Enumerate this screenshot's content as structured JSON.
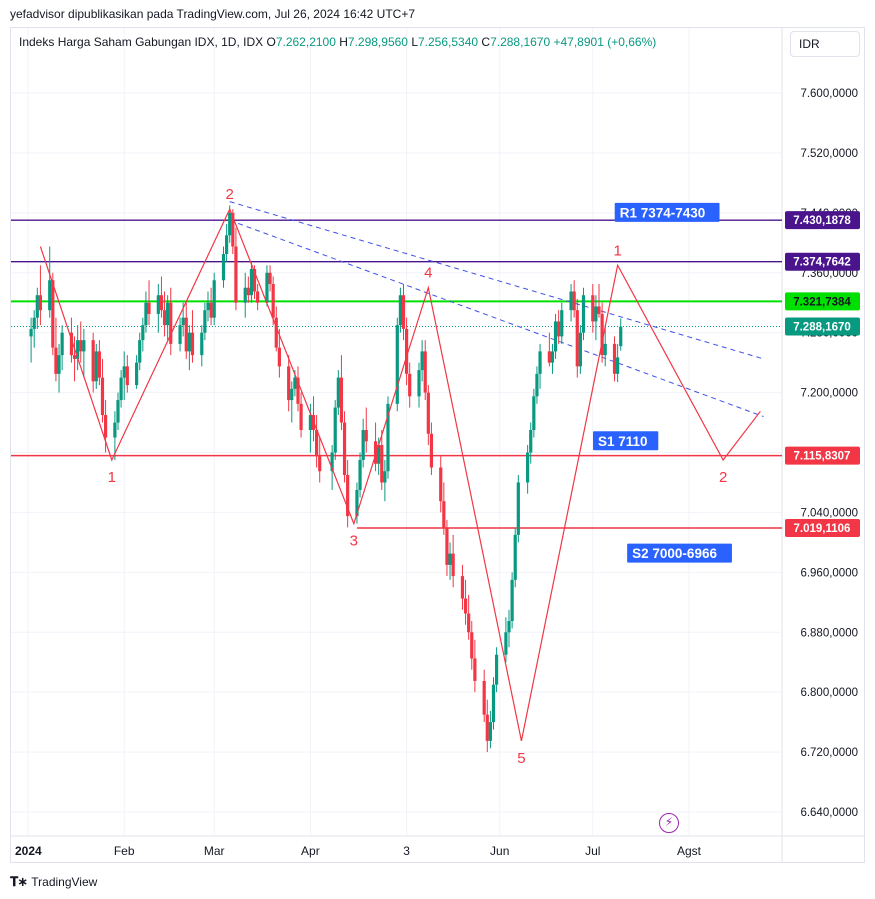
{
  "publisher": "yefadvisor dipublikasikan pada TradingView.com, Jul 26, 2024 16:42 UTC+7",
  "legend": {
    "title": "Indeks Harga Saham Gabungan IDX, 1D, IDX",
    "o_label": "O",
    "o": "7.262,2100",
    "h_label": "H",
    "h": "7.298,9560",
    "l_label": "L",
    "l": "7.256,5340",
    "c_label": "C",
    "c": "7.288,1670",
    "change": "+47,8901 (+0,66%)"
  },
  "currency": "IDR",
  "footer_logo": "TradingView",
  "colors": {
    "up": "#089981",
    "down": "#f23645",
    "wave": "#f23645",
    "trend": "#3f51e8",
    "resistance": "#4a148c",
    "green_level": "#00e000",
    "support": "#f23645",
    "label_blue": "#2962ff"
  },
  "chart_data": {
    "type": "candlestick",
    "y_ticks": [
      6640,
      6720,
      6800,
      6880,
      6960,
      7040,
      7120,
      7200,
      7280,
      7360,
      7440,
      7520,
      7600
    ],
    "y_tick_labels": [
      "6.640,0000",
      "6.720,0000",
      "6.800,0000",
      "6.880,0000",
      "6.960,0000",
      "7.040,0000",
      "7.120,0000",
      "7.200,0000",
      "7.280,0000",
      "7.360,0000",
      "7.440,0000",
      "7.520,0000",
      "7.600,0000"
    ],
    "x_labels": [
      "2024",
      "Feb",
      "Mar",
      "Apr",
      "3",
      "Jun",
      "Jul",
      "Agst"
    ],
    "x_label_days": [
      1,
      32,
      61,
      92,
      123,
      153,
      183,
      214
    ],
    "price_levels": [
      {
        "value": 7430.1878,
        "label": "7.430,1878",
        "kind": "resistance"
      },
      {
        "value": 7374.7642,
        "label": "7.374,7642",
        "kind": "resistance"
      },
      {
        "value": 7321.7384,
        "label": "7.321,7384",
        "kind": "green"
      },
      {
        "value": 7288.167,
        "label": "7.288,1670",
        "kind": "last"
      },
      {
        "value": 7115.8307,
        "label": "7.115,8307",
        "kind": "support"
      },
      {
        "value": 7019.1106,
        "label": "7.019,1106",
        "kind": "support"
      }
    ],
    "zone_labels": [
      {
        "text": "R1 7374-7430",
        "day": 192,
        "value": 7440
      },
      {
        "text": "S1 7110",
        "day": 185,
        "value": 7135
      },
      {
        "text": "S2 7000-6966",
        "day": 196,
        "value": 6985
      }
    ],
    "wave_points": [
      {
        "day": 5,
        "value": 7395
      },
      {
        "day": 28,
        "value": 7110,
        "label": "1"
      },
      {
        "day": 66,
        "value": 7445,
        "label": "2"
      },
      {
        "day": 106,
        "value": 7025,
        "label": "3"
      },
      {
        "day": 130,
        "value": 7340,
        "label": "4"
      },
      {
        "day": 160,
        "value": 6735,
        "label": "5"
      },
      {
        "day": 191,
        "value": 7370,
        "label": "1"
      },
      {
        "day": 225,
        "value": 7110,
        "label": "2"
      },
      {
        "day": 237,
        "value": 7175
      }
    ],
    "trend_lines": [
      {
        "from": {
          "day": 66,
          "value": 7455
        },
        "to": {
          "day": 238,
          "value": 7245
        }
      },
      {
        "from": {
          "day": 66,
          "value": 7430
        },
        "to": {
          "day": 238,
          "value": 7168
        }
      }
    ],
    "candles": [
      {
        "day": 2,
        "o": 7275,
        "h": 7300,
        "l": 7240,
        "c": 7285
      },
      {
        "day": 3,
        "o": 7285,
        "h": 7310,
        "l": 7260,
        "c": 7300
      },
      {
        "day": 4,
        "o": 7300,
        "h": 7340,
        "l": 7285,
        "c": 7330
      },
      {
        "day": 5,
        "o": 7330,
        "h": 7370,
        "l": 7290,
        "c": 7310
      },
      {
        "day": 8,
        "o": 7310,
        "h": 7395,
        "l": 7300,
        "c": 7350
      },
      {
        "day": 9,
        "o": 7350,
        "h": 7360,
        "l": 7250,
        "c": 7260
      },
      {
        "day": 10,
        "o": 7260,
        "h": 7300,
        "l": 7215,
        "c": 7225
      },
      {
        "day": 11,
        "o": 7225,
        "h": 7265,
        "l": 7200,
        "c": 7250
      },
      {
        "day": 12,
        "o": 7250,
        "h": 7290,
        "l": 7230,
        "c": 7280
      },
      {
        "day": 15,
        "o": 7280,
        "h": 7300,
        "l": 7240,
        "c": 7250
      },
      {
        "day": 16,
        "o": 7250,
        "h": 7275,
        "l": 7215,
        "c": 7245
      },
      {
        "day": 17,
        "o": 7245,
        "h": 7290,
        "l": 7230,
        "c": 7270
      },
      {
        "day": 18,
        "o": 7270,
        "h": 7295,
        "l": 7240,
        "c": 7255
      },
      {
        "day": 19,
        "o": 7255,
        "h": 7285,
        "l": 7220,
        "c": 7270
      },
      {
        "day": 22,
        "o": 7270,
        "h": 7280,
        "l": 7200,
        "c": 7215
      },
      {
        "day": 23,
        "o": 7215,
        "h": 7265,
        "l": 7205,
        "c": 7255
      },
      {
        "day": 24,
        "o": 7255,
        "h": 7270,
        "l": 7210,
        "c": 7220
      },
      {
        "day": 25,
        "o": 7220,
        "h": 7245,
        "l": 7160,
        "c": 7170
      },
      {
        "day": 26,
        "o": 7170,
        "h": 7190,
        "l": 7120,
        "c": 7140
      },
      {
        "day": 29,
        "o": 7140,
        "h": 7175,
        "l": 7110,
        "c": 7160
      },
      {
        "day": 30,
        "o": 7160,
        "h": 7200,
        "l": 7150,
        "c": 7190
      },
      {
        "day": 31,
        "o": 7190,
        "h": 7230,
        "l": 7180,
        "c": 7220
      },
      {
        "day": 32,
        "o": 7220,
        "h": 7255,
        "l": 7190,
        "c": 7235
      },
      {
        "day": 33,
        "o": 7235,
        "h": 7250,
        "l": 7200,
        "c": 7210
      },
      {
        "day": 36,
        "o": 7210,
        "h": 7250,
        "l": 7205,
        "c": 7240
      },
      {
        "day": 37,
        "o": 7240,
        "h": 7280,
        "l": 7230,
        "c": 7270
      },
      {
        "day": 38,
        "o": 7270,
        "h": 7300,
        "l": 7255,
        "c": 7290
      },
      {
        "day": 39,
        "o": 7290,
        "h": 7335,
        "l": 7280,
        "c": 7320
      },
      {
        "day": 40,
        "o": 7320,
        "h": 7350,
        "l": 7290,
        "c": 7305
      },
      {
        "day": 43,
        "o": 7305,
        "h": 7345,
        "l": 7280,
        "c": 7330
      },
      {
        "day": 44,
        "o": 7330,
        "h": 7355,
        "l": 7300,
        "c": 7310
      },
      {
        "day": 45,
        "o": 7310,
        "h": 7335,
        "l": 7275,
        "c": 7290
      },
      {
        "day": 46,
        "o": 7290,
        "h": 7330,
        "l": 7270,
        "c": 7320
      },
      {
        "day": 47,
        "o": 7320,
        "h": 7340,
        "l": 7250,
        "c": 7265
      },
      {
        "day": 50,
        "o": 7265,
        "h": 7300,
        "l": 7255,
        "c": 7290
      },
      {
        "day": 51,
        "o": 7290,
        "h": 7320,
        "l": 7275,
        "c": 7300
      },
      {
        "day": 52,
        "o": 7300,
        "h": 7320,
        "l": 7245,
        "c": 7255
      },
      {
        "day": 53,
        "o": 7255,
        "h": 7290,
        "l": 7230,
        "c": 7280
      },
      {
        "day": 54,
        "o": 7280,
        "h": 7310,
        "l": 7240,
        "c": 7250
      },
      {
        "day": 57,
        "o": 7250,
        "h": 7290,
        "l": 7235,
        "c": 7280
      },
      {
        "day": 58,
        "o": 7280,
        "h": 7320,
        "l": 7270,
        "c": 7310
      },
      {
        "day": 59,
        "o": 7310,
        "h": 7335,
        "l": 7295,
        "c": 7320
      },
      {
        "day": 60,
        "o": 7320,
        "h": 7340,
        "l": 7290,
        "c": 7300
      },
      {
        "day": 61,
        "o": 7300,
        "h": 7360,
        "l": 7290,
        "c": 7350
      },
      {
        "day": 64,
        "o": 7350,
        "h": 7395,
        "l": 7340,
        "c": 7385
      },
      {
        "day": 65,
        "o": 7385,
        "h": 7425,
        "l": 7375,
        "c": 7410
      },
      {
        "day": 66,
        "o": 7410,
        "h": 7450,
        "l": 7400,
        "c": 7440
      },
      {
        "day": 67,
        "o": 7440,
        "h": 7445,
        "l": 7385,
        "c": 7395
      },
      {
        "day": 68,
        "o": 7395,
        "h": 7420,
        "l": 7310,
        "c": 7320
      },
      {
        "day": 71,
        "o": 7320,
        "h": 7360,
        "l": 7300,
        "c": 7340
      },
      {
        "day": 72,
        "o": 7340,
        "h": 7355,
        "l": 7320,
        "c": 7330
      },
      {
        "day": 73,
        "o": 7330,
        "h": 7375,
        "l": 7320,
        "c": 7365
      },
      {
        "day": 74,
        "o": 7365,
        "h": 7370,
        "l": 7325,
        "c": 7335
      },
      {
        "day": 75,
        "o": 7335,
        "h": 7345,
        "l": 7310,
        "c": 7320
      },
      {
        "day": 78,
        "o": 7320,
        "h": 7370,
        "l": 7315,
        "c": 7360
      },
      {
        "day": 79,
        "o": 7360,
        "h": 7370,
        "l": 7335,
        "c": 7345
      },
      {
        "day": 80,
        "o": 7345,
        "h": 7355,
        "l": 7290,
        "c": 7300
      },
      {
        "day": 81,
        "o": 7300,
        "h": 7315,
        "l": 7255,
        "c": 7260
      },
      {
        "day": 82,
        "o": 7260,
        "h": 7285,
        "l": 7220,
        "c": 7235
      },
      {
        "day": 85,
        "o": 7235,
        "h": 7250,
        "l": 7175,
        "c": 7190
      },
      {
        "day": 86,
        "o": 7190,
        "h": 7215,
        "l": 7160,
        "c": 7205
      },
      {
        "day": 87,
        "o": 7205,
        "h": 7230,
        "l": 7195,
        "c": 7220
      },
      {
        "day": 88,
        "o": 7220,
        "h": 7235,
        "l": 7175,
        "c": 7185
      },
      {
        "day": 89,
        "o": 7185,
        "h": 7200,
        "l": 7140,
        "c": 7150
      },
      {
        "day": 92,
        "o": 7150,
        "h": 7185,
        "l": 7120,
        "c": 7170
      },
      {
        "day": 93,
        "o": 7170,
        "h": 7195,
        "l": 7135,
        "c": 7150
      },
      {
        "day": 94,
        "o": 7150,
        "h": 7170,
        "l": 7100,
        "c": 7115
      },
      {
        "day": 95,
        "o": 7115,
        "h": 7140,
        "l": 7080,
        "c": 7095
      },
      {
        "day": 99,
        "o": 7095,
        "h": 7130,
        "l": 7070,
        "c": 7120
      },
      {
        "day": 100,
        "o": 7120,
        "h": 7190,
        "l": 7110,
        "c": 7180
      },
      {
        "day": 101,
        "o": 7180,
        "h": 7230,
        "l": 7170,
        "c": 7220
      },
      {
        "day": 102,
        "o": 7220,
        "h": 7250,
        "l": 7150,
        "c": 7160
      },
      {
        "day": 103,
        "o": 7160,
        "h": 7175,
        "l": 7080,
        "c": 7090
      },
      {
        "day": 104,
        "o": 7090,
        "h": 7110,
        "l": 7020,
        "c": 7035
      },
      {
        "day": 107,
        "o": 7035,
        "h": 7080,
        "l": 7025,
        "c": 7070
      },
      {
        "day": 108,
        "o": 7070,
        "h": 7120,
        "l": 7060,
        "c": 7110
      },
      {
        "day": 109,
        "o": 7110,
        "h": 7165,
        "l": 7100,
        "c": 7150
      },
      {
        "day": 110,
        "o": 7150,
        "h": 7180,
        "l": 7120,
        "c": 7135
      },
      {
        "day": 113,
        "o": 7135,
        "h": 7160,
        "l": 7095,
        "c": 7105
      },
      {
        "day": 114,
        "o": 7105,
        "h": 7140,
        "l": 7090,
        "c": 7130
      },
      {
        "day": 115,
        "o": 7130,
        "h": 7150,
        "l": 7070,
        "c": 7080
      },
      {
        "day": 116,
        "o": 7080,
        "h": 7110,
        "l": 7055,
        "c": 7095
      },
      {
        "day": 117,
        "o": 7095,
        "h": 7195,
        "l": 7085,
        "c": 7185
      },
      {
        "day": 120,
        "o": 7185,
        "h": 7300,
        "l": 7175,
        "c": 7290
      },
      {
        "day": 121,
        "o": 7290,
        "h": 7340,
        "l": 7280,
        "c": 7330
      },
      {
        "day": 122,
        "o": 7330,
        "h": 7345,
        "l": 7270,
        "c": 7285
      },
      {
        "day": 123,
        "o": 7285,
        "h": 7300,
        "l": 7210,
        "c": 7225
      },
      {
        "day": 124,
        "o": 7225,
        "h": 7240,
        "l": 7180,
        "c": 7195
      },
      {
        "day": 127,
        "o": 7195,
        "h": 7240,
        "l": 7180,
        "c": 7230
      },
      {
        "day": 128,
        "o": 7230,
        "h": 7270,
        "l": 7215,
        "c": 7255
      },
      {
        "day": 129,
        "o": 7255,
        "h": 7270,
        "l": 7190,
        "c": 7200
      },
      {
        "day": 130,
        "o": 7200,
        "h": 7210,
        "l": 7130,
        "c": 7145
      },
      {
        "day": 131,
        "o": 7145,
        "h": 7160,
        "l": 7090,
        "c": 7100
      },
      {
        "day": 134,
        "o": 7100,
        "h": 7115,
        "l": 7040,
        "c": 7055
      },
      {
        "day": 135,
        "o": 7055,
        "h": 7080,
        "l": 7010,
        "c": 7020
      },
      {
        "day": 136,
        "o": 7020,
        "h": 7030,
        "l": 6955,
        "c": 6970
      },
      {
        "day": 137,
        "o": 6970,
        "h": 7000,
        "l": 6950,
        "c": 6985
      },
      {
        "day": 138,
        "o": 6985,
        "h": 7010,
        "l": 6940,
        "c": 6955
      },
      {
        "day": 141,
        "o": 6955,
        "h": 6970,
        "l": 6910,
        "c": 6925
      },
      {
        "day": 142,
        "o": 6925,
        "h": 6950,
        "l": 6890,
        "c": 6905
      },
      {
        "day": 143,
        "o": 6905,
        "h": 6930,
        "l": 6870,
        "c": 6880
      },
      {
        "day": 144,
        "o": 6880,
        "h": 6895,
        "l": 6830,
        "c": 6845
      },
      {
        "day": 145,
        "o": 6845,
        "h": 6870,
        "l": 6800,
        "c": 6815
      },
      {
        "day": 148,
        "o": 6815,
        "h": 6830,
        "l": 6760,
        "c": 6770
      },
      {
        "day": 149,
        "o": 6770,
        "h": 6790,
        "l": 6720,
        "c": 6735
      },
      {
        "day": 150,
        "o": 6735,
        "h": 6775,
        "l": 6725,
        "c": 6760
      },
      {
        "day": 151,
        "o": 6760,
        "h": 6820,
        "l": 6750,
        "c": 6810
      },
      {
        "day": 152,
        "o": 6810,
        "h": 6860,
        "l": 6800,
        "c": 6850
      },
      {
        "day": 155,
        "o": 6850,
        "h": 6900,
        "l": 6840,
        "c": 6880
      },
      {
        "day": 156,
        "o": 6880,
        "h": 6910,
        "l": 6860,
        "c": 6895
      },
      {
        "day": 157,
        "o": 6895,
        "h": 6960,
        "l": 6885,
        "c": 6950
      },
      {
        "day": 158,
        "o": 6950,
        "h": 7020,
        "l": 6940,
        "c": 7010
      },
      {
        "day": 159,
        "o": 7010,
        "h": 7090,
        "l": 7000,
        "c": 7080
      },
      {
        "day": 162,
        "o": 7080,
        "h": 7130,
        "l": 7065,
        "c": 7120
      },
      {
        "day": 163,
        "o": 7120,
        "h": 7160,
        "l": 7105,
        "c": 7150
      },
      {
        "day": 164,
        "o": 7150,
        "h": 7205,
        "l": 7140,
        "c": 7195
      },
      {
        "day": 165,
        "o": 7195,
        "h": 7235,
        "l": 7185,
        "c": 7225
      },
      {
        "day": 166,
        "o": 7225,
        "h": 7265,
        "l": 7205,
        "c": 7255
      },
      {
        "day": 169,
        "o": 7255,
        "h": 7280,
        "l": 7235,
        "c": 7240
      },
      {
        "day": 170,
        "o": 7240,
        "h": 7265,
        "l": 7225,
        "c": 7255
      },
      {
        "day": 171,
        "o": 7255,
        "h": 7305,
        "l": 7245,
        "c": 7295
      },
      {
        "day": 172,
        "o": 7295,
        "h": 7310,
        "l": 7265,
        "c": 7275
      },
      {
        "day": 173,
        "o": 7275,
        "h": 7320,
        "l": 7265,
        "c": 7310
      },
      {
        "day": 176,
        "o": 7310,
        "h": 7345,
        "l": 7295,
        "c": 7335
      },
      {
        "day": 177,
        "o": 7335,
        "h": 7350,
        "l": 7300,
        "c": 7310
      },
      {
        "day": 178,
        "o": 7310,
        "h": 7325,
        "l": 7220,
        "c": 7235
      },
      {
        "day": 179,
        "o": 7235,
        "h": 7290,
        "l": 7225,
        "c": 7280
      },
      {
        "day": 180,
        "o": 7280,
        "h": 7340,
        "l": 7270,
        "c": 7330
      },
      {
        "day": 183,
        "o": 7330,
        "h": 7345,
        "l": 7280,
        "c": 7295
      },
      {
        "day": 184,
        "o": 7295,
        "h": 7330,
        "l": 7270,
        "c": 7315
      },
      {
        "day": 185,
        "o": 7315,
        "h": 7345,
        "l": 7300,
        "c": 7305
      },
      {
        "day": 186,
        "o": 7305,
        "h": 7320,
        "l": 7240,
        "c": 7250
      },
      {
        "day": 187,
        "o": 7250,
        "h": 7290,
        "l": 7235,
        "c": 7265
      },
      {
        "day": 190,
        "o": 7265,
        "h": 7275,
        "l": 7215,
        "c": 7225
      },
      {
        "day": 191,
        "o": 7225,
        "h": 7265,
        "l": 7214,
        "c": 7247
      },
      {
        "day": 192,
        "o": 7262,
        "h": 7299,
        "l": 7256,
        "c": 7288
      }
    ]
  }
}
